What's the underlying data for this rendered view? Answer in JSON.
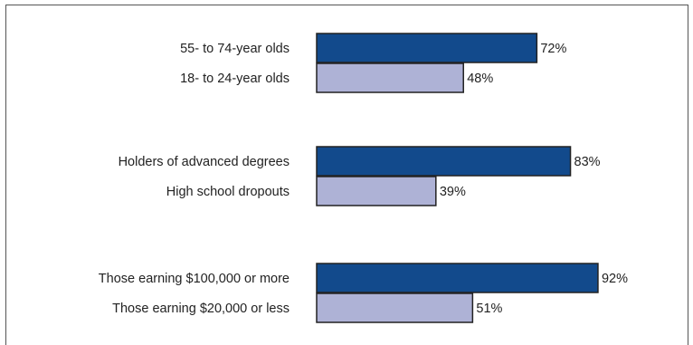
{
  "chart_data": {
    "type": "bar",
    "orientation": "horizontal",
    "title": "",
    "xlabel": "",
    "ylabel": "",
    "xlim": [
      0,
      100
    ],
    "grid": false,
    "legend": "none",
    "value_suffix": "%",
    "colors": {
      "dark": "#124a8c",
      "light": "#aeb2d6",
      "outline": "#222222",
      "frame": "#555555"
    },
    "groups": [
      {
        "bars": [
          {
            "label": "55- to 74-year olds",
            "value": 72,
            "style": "dark",
            "value_label": "72%"
          },
          {
            "label": "18- to 24-year olds",
            "value": 48,
            "style": "light",
            "value_label": "48%"
          }
        ]
      },
      {
        "bars": [
          {
            "label": "Holders of advanced degrees",
            "value": 83,
            "style": "dark",
            "value_label": "83%"
          },
          {
            "label": "High school dropouts",
            "value": 39,
            "style": "light",
            "value_label": "39%"
          }
        ]
      },
      {
        "bars": [
          {
            "label": "Those earning $100,000 or more",
            "value": 92,
            "style": "dark",
            "value_label": "92%"
          },
          {
            "label": "Those earning $20,000 or less",
            "value": 51,
            "style": "light",
            "value_label": "51%"
          }
        ]
      }
    ]
  }
}
